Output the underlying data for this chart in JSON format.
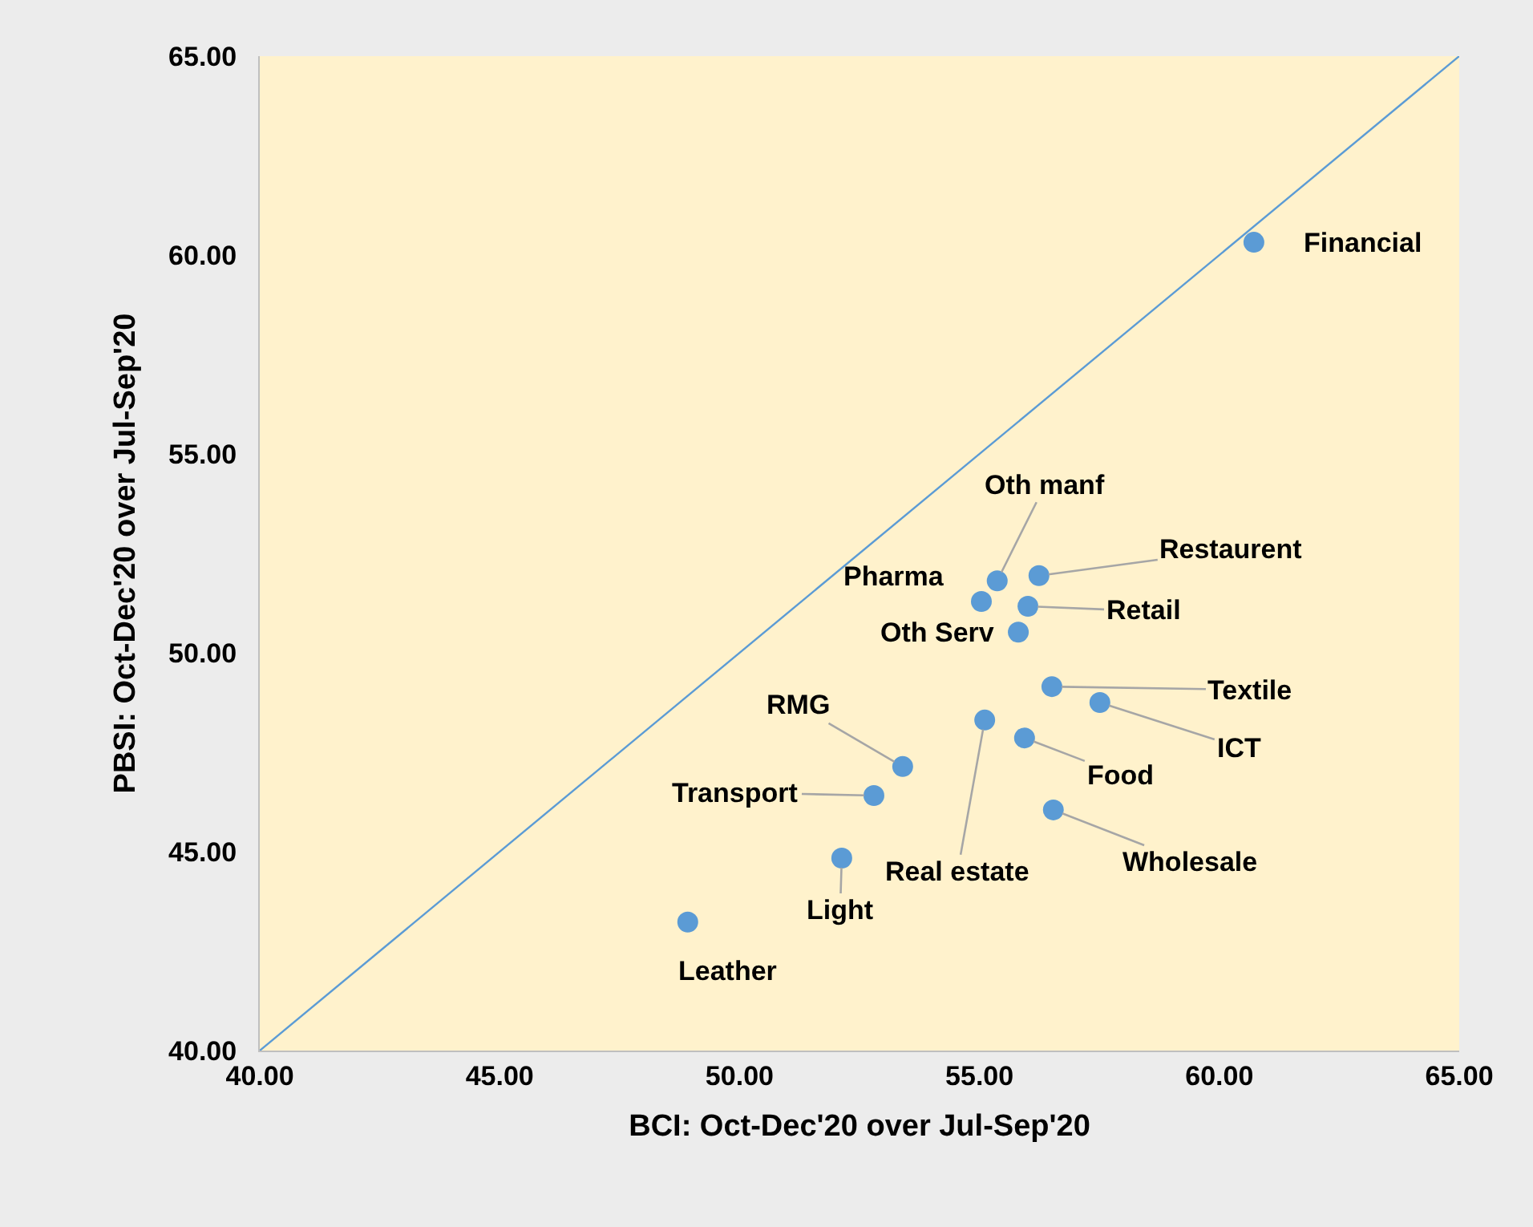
{
  "chart_data": {
    "type": "scatter",
    "xlabel": "BCI: Oct-Dec'20 over Jul-Sep'20",
    "ylabel": "PBSI: Oct-Dec'20 over Jul-Sep'20",
    "xlim": [
      40,
      65
    ],
    "ylim": [
      40,
      65
    ],
    "xticks": [
      {
        "value": 40,
        "label": "40.00"
      },
      {
        "value": 45,
        "label": "45.00"
      },
      {
        "value": 50,
        "label": "50.00"
      },
      {
        "value": 55,
        "label": "55.00"
      },
      {
        "value": 60,
        "label": "60.00"
      },
      {
        "value": 65,
        "label": "65.00"
      }
    ],
    "yticks": [
      {
        "value": 40,
        "label": "40.00"
      },
      {
        "value": 45,
        "label": "45.00"
      },
      {
        "value": 50,
        "label": "50.00"
      },
      {
        "value": 55,
        "label": "55.00"
      },
      {
        "value": 60,
        "label": "60.00"
      },
      {
        "value": 65,
        "label": "65.00"
      }
    ],
    "grid": false,
    "marker": "circle",
    "series": [
      {
        "color": "#5b9bd5",
        "x": [
          60.72,
          55.37,
          56.24,
          55.04,
          56.01,
          55.81,
          56.51,
          57.51,
          55.11,
          55.94,
          53.4,
          52.8,
          56.54,
          52.13,
          48.92
        ],
        "values": [
          60.32,
          51.81,
          51.94,
          51.29,
          51.17,
          50.52,
          49.15,
          48.75,
          48.31,
          47.86,
          47.14,
          46.41,
          46.05,
          44.84,
          43.23
        ]
      },
      {
        "type": "line",
        "marker": "none",
        "color": "#5b9bd5",
        "x": [
          40,
          65
        ],
        "values": [
          40,
          65
        ]
      }
    ],
    "annotations": [
      {
        "text": "Financial",
        "x": 60.72,
        "y": 60.32
      },
      {
        "text": "Oth manf",
        "x": 55.37,
        "y": 51.81
      },
      {
        "text": "Restaurent",
        "x": 56.24,
        "y": 51.94
      },
      {
        "text": "Pharma",
        "x": 55.04,
        "y": 51.29
      },
      {
        "text": "Retail",
        "x": 56.01,
        "y": 51.17
      },
      {
        "text": "Oth Serv",
        "x": 55.81,
        "y": 50.52
      },
      {
        "text": "Textile",
        "x": 56.51,
        "y": 49.15
      },
      {
        "text": "ICT",
        "x": 57.51,
        "y": 48.75
      },
      {
        "text": "Real estate",
        "x": 55.11,
        "y": 48.31
      },
      {
        "text": "Food",
        "x": 55.94,
        "y": 47.86
      },
      {
        "text": "RMG",
        "x": 53.4,
        "y": 47.14
      },
      {
        "text": "Transport",
        "x": 52.8,
        "y": 46.41
      },
      {
        "text": "Wholesale",
        "x": 56.54,
        "y": 46.05
      },
      {
        "text": "Light",
        "x": 52.13,
        "y": 44.84
      },
      {
        "text": "Leather",
        "x": 48.92,
        "y": 43.23
      }
    ]
  }
}
